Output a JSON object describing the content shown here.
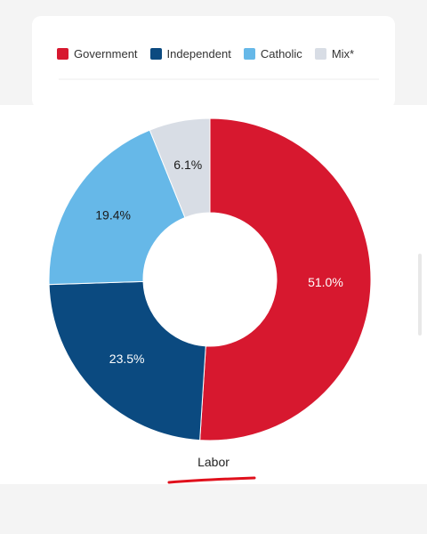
{
  "legend": {
    "items": [
      {
        "label": "Government",
        "color": "#d7182f"
      },
      {
        "label": "Independent",
        "color": "#0b4a80"
      },
      {
        "label": "Catholic",
        "color": "#66b8e8"
      },
      {
        "label": "Mix*",
        "color": "#d8dde5"
      }
    ]
  },
  "chart_data": {
    "type": "pie",
    "donut": true,
    "title": "Labor",
    "slices": [
      {
        "label": "Government",
        "value": 51.0,
        "display": "51.0%",
        "color": "#d7182f",
        "text_color": "#ffffff"
      },
      {
        "label": "Independent",
        "value": 23.5,
        "display": "23.5%",
        "color": "#0b4a80",
        "text_color": "#ffffff"
      },
      {
        "label": "Catholic",
        "value": 19.4,
        "display": "19.4%",
        "color": "#66b8e8",
        "text_color": "#1a1a1a"
      },
      {
        "label": "Mix*",
        "value": 6.1,
        "display": "6.1%",
        "color": "#d8dde5",
        "text_color": "#1a1a1a"
      }
    ],
    "start": "top",
    "direction": "clockwise",
    "annotation": {
      "underline_color": "#e0101c"
    }
  }
}
